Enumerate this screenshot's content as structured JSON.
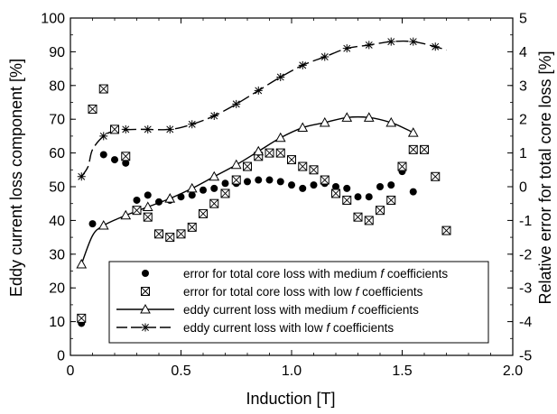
{
  "chart_data": {
    "type": "scatter",
    "title": "",
    "xlabel": "Induction [T]",
    "ylabel": "Eddy current loss component [%]",
    "y2label": "Relative error for total core loss [%]",
    "xlim": [
      0,
      2.0
    ],
    "ylim": [
      0,
      100
    ],
    "y2lim": [
      -5,
      5
    ],
    "x_ticks": [
      "0",
      "0.5",
      "1.0",
      "1.5",
      "2.0"
    ],
    "y_ticks": [
      "0",
      "10",
      "20",
      "30",
      "40",
      "50",
      "60",
      "70",
      "80",
      "90",
      "100"
    ],
    "y2_ticks": [
      "-5",
      "-4",
      "-3",
      "-2",
      "-1",
      "0",
      "1",
      "2",
      "3",
      "4",
      "5"
    ],
    "grid": false,
    "legend_position": "bottom-center",
    "series": [
      {
        "name": "error for total core loss with medium f coefficients",
        "axis": "right",
        "style": "filled-circle",
        "x": [
          0.05,
          0.1,
          0.15,
          0.2,
          0.25,
          0.3,
          0.35,
          0.4,
          0.45,
          0.5,
          0.55,
          0.6,
          0.65,
          0.7,
          0.75,
          0.8,
          0.85,
          0.9,
          0.95,
          1.0,
          1.05,
          1.1,
          1.15,
          1.2,
          1.25,
          1.3,
          1.35,
          1.4,
          1.45,
          1.5,
          1.55
        ],
        "y": [
          -4.05,
          -1.1,
          0.95,
          0.8,
          0.7,
          -0.4,
          -0.25,
          -0.45,
          -0.4,
          -0.3,
          -0.25,
          -0.1,
          -0.05,
          0.1,
          0.1,
          0.15,
          0.2,
          0.2,
          0.15,
          0.05,
          -0.05,
          0.05,
          0.1,
          0.0,
          -0.05,
          -0.3,
          -0.3,
          0.0,
          0.05,
          0.45,
          -0.15
        ]
      },
      {
        "name": "error for total core loss with low f coefficients",
        "axis": "right",
        "style": "boxed-cross",
        "x": [
          0.05,
          0.1,
          0.15,
          0.2,
          0.25,
          0.3,
          0.35,
          0.4,
          0.45,
          0.5,
          0.55,
          0.6,
          0.65,
          0.7,
          0.75,
          0.8,
          0.85,
          0.9,
          0.95,
          1.0,
          1.05,
          1.1,
          1.15,
          1.2,
          1.25,
          1.3,
          1.35,
          1.4,
          1.45,
          1.5,
          1.55,
          1.6,
          1.65,
          1.7
        ],
        "y": [
          -3.9,
          2.3,
          2.9,
          1.7,
          0.9,
          -0.7,
          -0.9,
          -1.4,
          -1.5,
          -1.4,
          -1.2,
          -0.8,
          -0.5,
          -0.2,
          0.2,
          0.6,
          0.9,
          1.0,
          1.0,
          0.8,
          0.6,
          0.5,
          0.2,
          -0.2,
          -0.4,
          -0.9,
          -1.0,
          -0.7,
          -0.4,
          0.6,
          1.1,
          1.1,
          0.3,
          -1.3
        ]
      },
      {
        "name": "eddy current loss with medium f coefficients",
        "axis": "left",
        "style": "solid-line-triangle",
        "x": [
          0.05,
          0.15,
          0.25,
          0.35,
          0.45,
          0.55,
          0.65,
          0.75,
          0.85,
          0.95,
          1.05,
          1.15,
          1.25,
          1.35,
          1.45,
          1.55
        ],
        "y": [
          27,
          38.5,
          41.5,
          44,
          46.5,
          49.5,
          53,
          56.5,
          60.5,
          64.5,
          67.5,
          69,
          70.5,
          70.5,
          69,
          66
        ]
      },
      {
        "name": "eddy current loss with low f coefficients",
        "axis": "left",
        "style": "dashed-line-star",
        "x": [
          0.05,
          0.15,
          0.25,
          0.35,
          0.45,
          0.55,
          0.65,
          0.75,
          0.85,
          0.95,
          1.05,
          1.15,
          1.25,
          1.35,
          1.45,
          1.55,
          1.65
        ],
        "y": [
          53,
          65,
          67,
          67,
          67,
          68.5,
          71,
          74.5,
          78.5,
          82.5,
          86,
          88.5,
          91,
          92,
          93,
          93,
          91.5
        ]
      }
    ],
    "line_x": {
      "medium": [
        0.05,
        0.1,
        0.15,
        0.25,
        0.35,
        0.45,
        0.55,
        0.65,
        0.75,
        0.85,
        0.95,
        1.05,
        1.15,
        1.25,
        1.35,
        1.45,
        1.52,
        1.55
      ],
      "low": [
        0.05,
        0.08,
        0.1,
        0.15,
        0.2,
        0.3,
        0.45,
        0.55,
        0.65,
        0.75,
        0.85,
        0.95,
        1.05,
        1.15,
        1.25,
        1.35,
        1.45,
        1.55,
        1.65,
        1.7
      ]
    },
    "line_y": {
      "medium": [
        27,
        35.5,
        38.5,
        41.5,
        44,
        46.5,
        49.5,
        53,
        56.5,
        60.5,
        64.5,
        67.5,
        69,
        70.5,
        70.5,
        69,
        67,
        66
      ],
      "low": [
        53,
        56,
        61,
        65,
        66.5,
        67,
        67,
        68.5,
        71,
        74.5,
        78.5,
        82.5,
        86,
        88.5,
        91,
        92,
        93,
        93,
        91.5,
        90.5
      ]
    }
  }
}
